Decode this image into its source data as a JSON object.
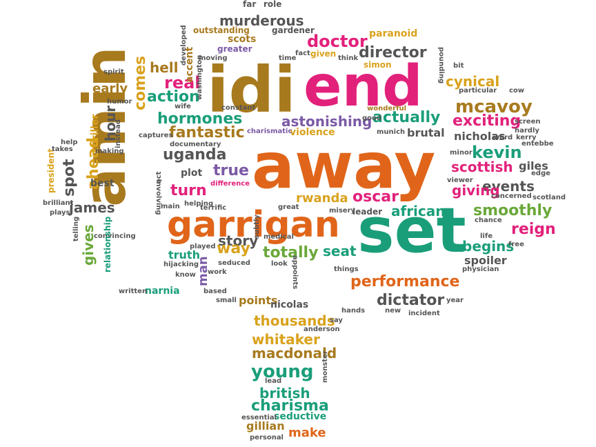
{
  "colors": {
    "brown": "#a87a1e",
    "orange": "#e0651a",
    "magenta": "#e2217b",
    "teal": "#1a9e7a",
    "gray": "#555555",
    "purple": "#7b5aa6",
    "green": "#6aa83a",
    "gold": "#d9a21c"
  },
  "words": [
    {
      "text": "amin",
      "color": "brown"
    },
    {
      "text": "away",
      "color": "orange"
    },
    {
      "text": "end",
      "color": "magenta"
    },
    {
      "text": "idi",
      "color": "brown"
    },
    {
      "text": "set",
      "color": "teal"
    },
    {
      "text": "garrigan",
      "color": "orange"
    },
    {
      "text": "performance",
      "color": "orange"
    },
    {
      "text": "hormones",
      "color": "teal"
    },
    {
      "text": "fantastic",
      "color": "brown"
    },
    {
      "text": "uganda",
      "color": "gray"
    },
    {
      "text": "astonishing",
      "color": "purple"
    },
    {
      "text": "actually",
      "color": "teal"
    },
    {
      "text": "mcavoy",
      "color": "brown"
    },
    {
      "text": "exciting",
      "color": "magenta"
    },
    {
      "text": "kevin",
      "color": "teal"
    },
    {
      "text": "scottish",
      "color": "magenta"
    },
    {
      "text": "events",
      "color": "gray"
    },
    {
      "text": "smoothly",
      "color": "green"
    },
    {
      "text": "reign",
      "color": "magenta"
    },
    {
      "text": "begins",
      "color": "teal"
    },
    {
      "text": "dictator",
      "color": "gray"
    },
    {
      "text": "thousands",
      "color": "gold"
    },
    {
      "text": "whitaker",
      "color": "gold"
    },
    {
      "text": "macdonald",
      "color": "brown"
    },
    {
      "text": "young",
      "color": "teal"
    },
    {
      "text": "british",
      "color": "teal"
    },
    {
      "text": "charisma",
      "color": "teal"
    },
    {
      "text": "gillian",
      "color": "brown"
    },
    {
      "text": "make",
      "color": "orange"
    },
    {
      "text": "seductive",
      "color": "teal"
    },
    {
      "text": "murderous",
      "color": "gray"
    },
    {
      "text": "doctor",
      "color": "magenta"
    },
    {
      "text": "director",
      "color": "gray"
    },
    {
      "text": "cynical",
      "color": "gold"
    },
    {
      "text": "true",
      "color": "purple"
    },
    {
      "text": "turn",
      "color": "magenta"
    },
    {
      "text": "story",
      "color": "gray"
    },
    {
      "text": "way",
      "color": "gold"
    },
    {
      "text": "totally",
      "color": "green"
    },
    {
      "text": "seat",
      "color": "teal"
    },
    {
      "text": "oscar",
      "color": "magenta"
    },
    {
      "text": "rwanda",
      "color": "gold"
    },
    {
      "text": "african",
      "color": "teal"
    },
    {
      "text": "giving",
      "color": "magenta"
    },
    {
      "text": "real",
      "color": "magenta"
    },
    {
      "text": "action",
      "color": "teal"
    },
    {
      "text": "hell",
      "color": "brown"
    },
    {
      "text": "early",
      "color": "brown"
    },
    {
      "text": "comes",
      "color": "gold"
    },
    {
      "text": "hour",
      "color": "gray"
    },
    {
      "text": "spot",
      "color": "gray"
    },
    {
      "text": "ahead",
      "color": "gold"
    },
    {
      "text": "james",
      "color": "gray"
    },
    {
      "text": "gives",
      "color": "green"
    },
    {
      "text": "nicholas",
      "color": "gray"
    },
    {
      "text": "brutal",
      "color": "gray"
    },
    {
      "text": "violence",
      "color": "gold"
    },
    {
      "text": "man",
      "color": "purple"
    },
    {
      "text": "truth",
      "color": "teal"
    },
    {
      "text": "points",
      "color": "brown"
    },
    {
      "text": "nicolas",
      "color": "gray"
    },
    {
      "text": "spoiler",
      "color": "gray"
    },
    {
      "text": "giles",
      "color": "gray"
    },
    {
      "text": "narnia",
      "color": "teal"
    },
    {
      "text": "best",
      "color": "gray"
    },
    {
      "text": "plot",
      "color": "gray"
    },
    {
      "text": "leader",
      "color": "gray"
    },
    {
      "text": "paranoid",
      "color": "gold"
    },
    {
      "text": "simon",
      "color": "gold"
    },
    {
      "text": "given",
      "color": "gold"
    },
    {
      "text": "scots",
      "color": "brown"
    },
    {
      "text": "greater",
      "color": "purple"
    },
    {
      "text": "outstanding",
      "color": "brown"
    },
    {
      "text": "gardener",
      "color": "gray"
    },
    {
      "text": "far",
      "color": "gray"
    },
    {
      "text": "role",
      "color": "gray"
    },
    {
      "text": "accent",
      "color": "brown"
    },
    {
      "text": "fact",
      "color": "gray"
    },
    {
      "text": "think",
      "color": "gray"
    },
    {
      "text": "time",
      "color": "gray"
    },
    {
      "text": "bit",
      "color": "gray"
    },
    {
      "text": "particular",
      "color": "gray"
    },
    {
      "text": "cow",
      "color": "gray"
    },
    {
      "text": "wonderful",
      "color": "brown"
    },
    {
      "text": "good",
      "color": "gray"
    },
    {
      "text": "munich",
      "color": "gray"
    },
    {
      "text": "charismatic",
      "color": "purple"
    },
    {
      "text": "constant",
      "color": "gray"
    },
    {
      "text": "captures",
      "color": "gray"
    },
    {
      "text": "documentary",
      "color": "gray"
    },
    {
      "text": "difference",
      "color": "magenta"
    },
    {
      "text": "helping",
      "color": "gray"
    },
    {
      "text": "terrific",
      "color": "gray"
    },
    {
      "text": "great",
      "color": "gray"
    },
    {
      "text": "misery",
      "color": "gray"
    },
    {
      "text": "medical",
      "color": "gray"
    },
    {
      "text": "played",
      "color": "gray"
    },
    {
      "text": "seduced",
      "color": "gray"
    },
    {
      "text": "look",
      "color": "gray"
    },
    {
      "text": "work",
      "color": "gray"
    },
    {
      "text": "based",
      "color": "gray"
    },
    {
      "text": "small",
      "color": "gray"
    },
    {
      "text": "hijacking",
      "color": "gray"
    },
    {
      "text": "know",
      "color": "gray"
    },
    {
      "text": "written",
      "color": "gray"
    },
    {
      "text": "convincing",
      "color": "gray"
    },
    {
      "text": "relationship",
      "color": "teal"
    },
    {
      "text": "telling",
      "color": "gray"
    },
    {
      "text": "plays",
      "color": "gray"
    },
    {
      "text": "brilliant",
      "color": "gray"
    },
    {
      "text": "president",
      "color": "gold"
    },
    {
      "text": "takes",
      "color": "gray"
    },
    {
      "text": "help",
      "color": "gray"
    },
    {
      "text": "thriller",
      "color": "gold"
    },
    {
      "text": "making",
      "color": "gray"
    },
    {
      "text": "humor",
      "color": "gray"
    },
    {
      "text": "spirit",
      "color": "gray"
    },
    {
      "text": "wife",
      "color": "gray"
    },
    {
      "text": "developed",
      "color": "gray"
    },
    {
      "text": "washington",
      "color": "gray"
    },
    {
      "text": "moving",
      "color": "gray"
    },
    {
      "text": "instead",
      "color": "gray"
    },
    {
      "text": "things",
      "color": "gray"
    },
    {
      "text": "physician",
      "color": "gray"
    },
    {
      "text": "hands",
      "color": "gray"
    },
    {
      "text": "new",
      "color": "gray"
    },
    {
      "text": "incident",
      "color": "gray"
    },
    {
      "text": "year",
      "color": "gray"
    },
    {
      "text": "say",
      "color": "gray"
    },
    {
      "text": "anderson",
      "color": "gray"
    },
    {
      "text": "lead",
      "color": "gray"
    },
    {
      "text": "monster",
      "color": "gray"
    },
    {
      "text": "essential",
      "color": "gray"
    },
    {
      "text": "personal",
      "color": "gray"
    },
    {
      "text": "chance",
      "color": "gray"
    },
    {
      "text": "life",
      "color": "gray"
    },
    {
      "text": "free",
      "color": "gray"
    },
    {
      "text": "concerned",
      "color": "gray"
    },
    {
      "text": "scotland",
      "color": "gray"
    },
    {
      "text": "edge",
      "color": "gray"
    },
    {
      "text": "viewer",
      "color": "gray"
    },
    {
      "text": "minor",
      "color": "gray"
    },
    {
      "text": "screen",
      "color": "gray"
    },
    {
      "text": "hardly",
      "color": "gray"
    },
    {
      "text": "entebbe",
      "color": "gray"
    },
    {
      "text": "word",
      "color": "gray"
    },
    {
      "text": "pounding",
      "color": "gray"
    },
    {
      "text": "appoints",
      "color": "gray"
    },
    {
      "text": "subtly",
      "color": "gray"
    },
    {
      "text": "act",
      "color": "gray"
    },
    {
      "text": "involving",
      "color": "gray"
    },
    {
      "text": "main",
      "color": "gray"
    },
    {
      "text": "kerry",
      "color": "gray"
    }
  ]
}
